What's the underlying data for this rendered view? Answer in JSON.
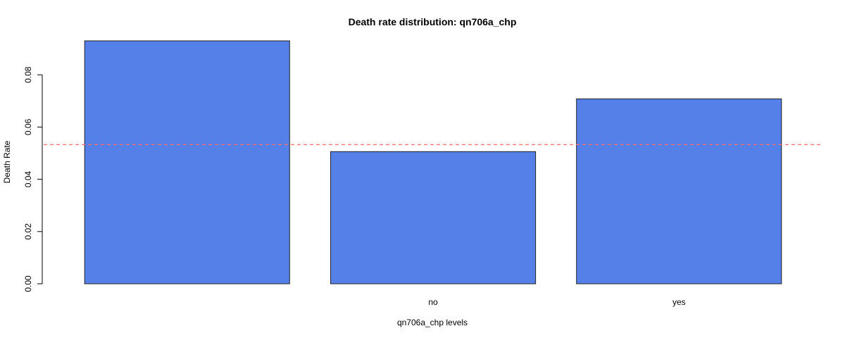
{
  "chart_data": {
    "type": "bar",
    "title": "Death rate distribution: qn706a_chp",
    "xlabel": "qn706a_chp levels",
    "ylabel": "Death Rate",
    "categories": [
      "",
      "no",
      "yes"
    ],
    "values": [
      0.093,
      0.0506,
      0.0708
    ],
    "reference_line": 0.0533,
    "ylim": [
      0,
      0.093
    ],
    "yticks": [
      0,
      0.02,
      0.04,
      0.06,
      0.08
    ],
    "ytick_labels": [
      "0.00",
      "0.02",
      "0.04",
      "0.06",
      "0.08"
    ],
    "bar_color": "#5580E8",
    "reference_line_color": "#FF6B6B",
    "grid": false,
    "legend": "none"
  }
}
